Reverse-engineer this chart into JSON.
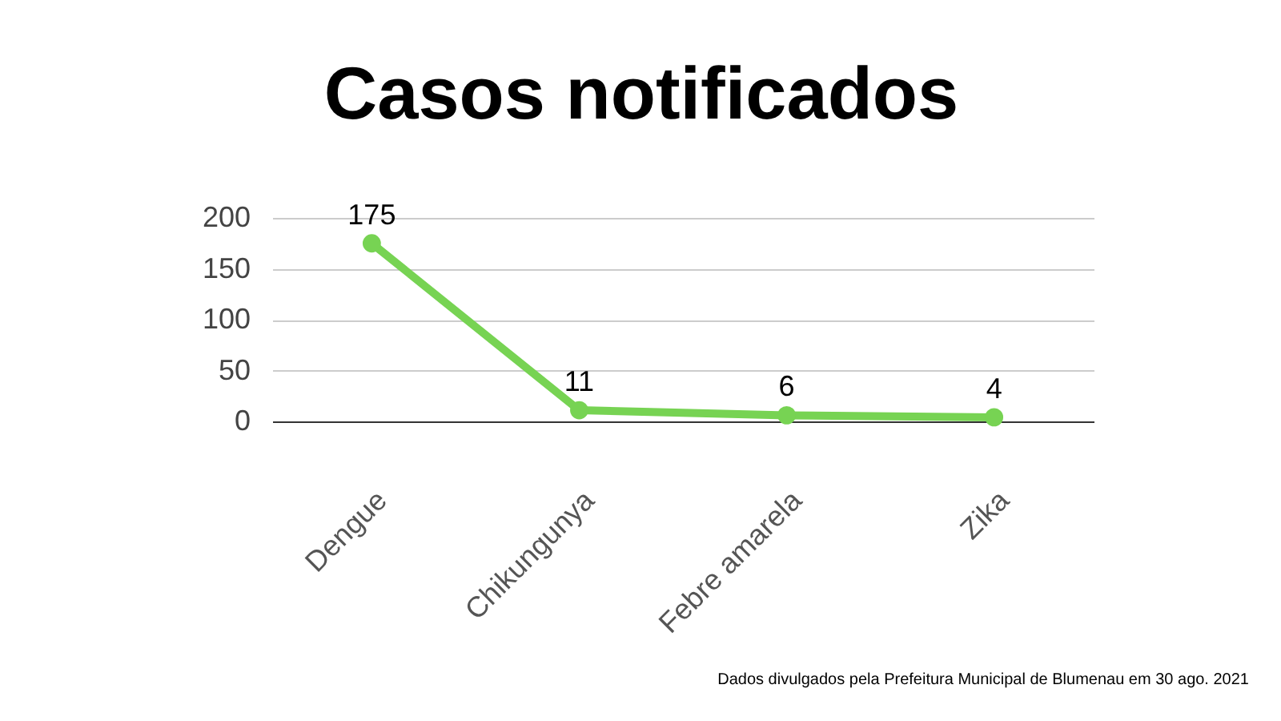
{
  "chart_data": {
    "type": "line",
    "title": "Casos notificados",
    "categories": [
      "Dengue",
      "Chikungunya",
      "Febre amarela",
      "Zika"
    ],
    "series": [
      {
        "color": "#77d353",
        "values": [
          175,
          11,
          6,
          4
        ]
      }
    ],
    "ylim": [
      0,
      200
    ],
    "yticks": [
      0,
      50,
      100,
      150,
      200
    ],
    "grid": "y",
    "marker": "circle",
    "line_style": "solid",
    "data_labels": true,
    "annotations": [
      "Dados divulgados pela Prefeitura Municipal de Blumenau em 30 ago. 2021"
    ]
  }
}
